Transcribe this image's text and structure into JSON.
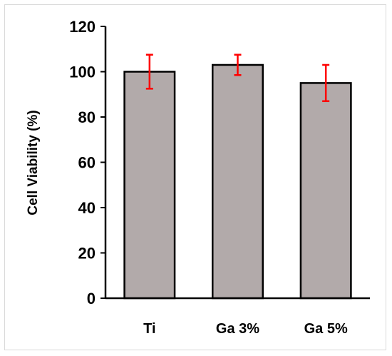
{
  "chart_data": {
    "type": "bar",
    "title": "",
    "xlabel": "",
    "ylabel": "Cell Viability (%)",
    "ylim": [
      0,
      120
    ],
    "yticks": [
      "0",
      "20",
      "40",
      "60",
      "80",
      "100",
      "120"
    ],
    "categories": [
      "Ti",
      "Ga 3%",
      "Ga 5%"
    ],
    "values": [
      100,
      103,
      95
    ],
    "error": [
      7.5,
      4.5,
      8
    ],
    "grid": false,
    "legend": "none",
    "colors": {
      "bar_fill": "#b2aaaa",
      "bar_stroke": "#000000",
      "error_bar": "#ff0000"
    }
  }
}
